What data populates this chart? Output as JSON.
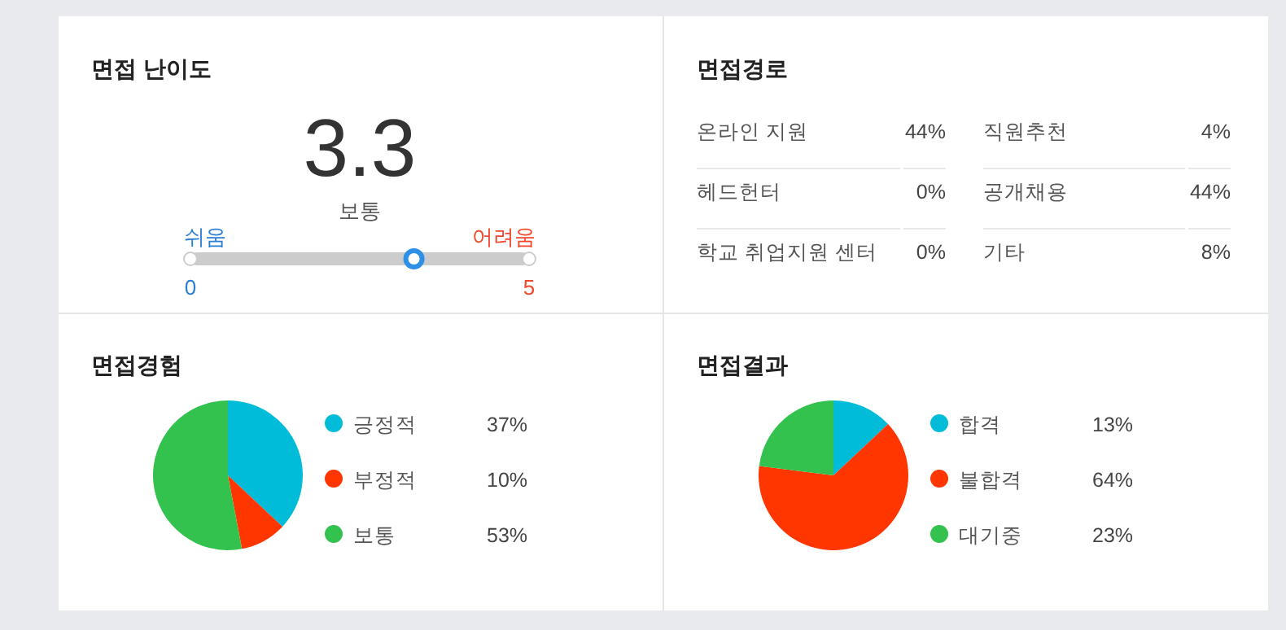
{
  "chart_data": [
    {
      "type": "other",
      "title": "면접 난이도",
      "subtitle": "보통",
      "values": [
        3.3
      ],
      "value_labels": [
        "3.3"
      ],
      "annotations": [
        "쉬움",
        "어려움",
        "0",
        "5"
      ]
    },
    {
      "type": "other",
      "title": "면접경로",
      "categories": [
        "온라인 지원",
        "헤드헌터",
        "학교 취업지원 센터",
        "직원추천",
        "공개채용",
        "기타"
      ],
      "value_labels": [
        "44%",
        "0%",
        "0%",
        "4%",
        "44%",
        "8%"
      ]
    },
    {
      "type": "pie",
      "title": "면접경험",
      "categories": [
        "긍정적",
        "부정적",
        "보통"
      ],
      "values": [
        37,
        10,
        53
      ],
      "value_labels": [
        "37%",
        "10%",
        "53%"
      ],
      "colors": [
        "#00bcd9",
        "#ff3600",
        "#34c24f"
      ],
      "legend": "right"
    },
    {
      "type": "pie",
      "title": "면접결과",
      "categories": [
        "합격",
        "불합격",
        "대기중"
      ],
      "values": [
        13,
        64,
        23
      ],
      "value_labels": [
        "13%",
        "64%",
        "23%"
      ],
      "colors": [
        "#00bcd9",
        "#ff3600",
        "#34c24f"
      ],
      "legend": "right"
    }
  ]
}
